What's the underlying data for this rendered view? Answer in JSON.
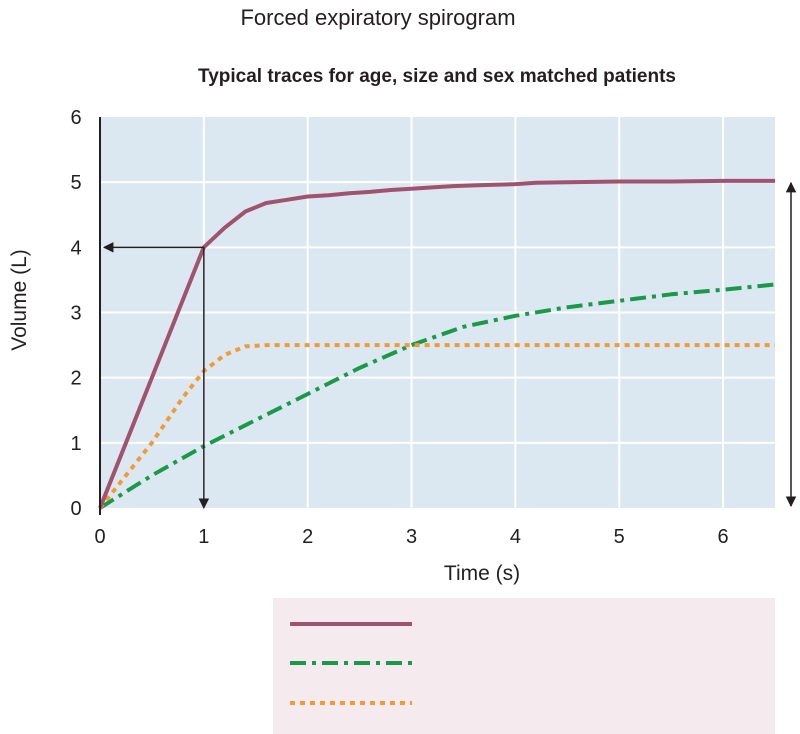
{
  "chart_data": {
    "type": "line",
    "title": "Forced expiratory spirogram",
    "subtitle": "Typical traces for age, size and sex matched patients",
    "xlabel": "Time (s)",
    "ylabel": "Volume (L)",
    "xlim": [
      0,
      6.5
    ],
    "ylim": [
      0,
      6
    ],
    "x_ticks": [
      "0",
      "1",
      "2",
      "3",
      "4",
      "5",
      "6"
    ],
    "y_ticks": [
      "0",
      "1",
      "2",
      "3",
      "4",
      "5",
      "6"
    ],
    "grid": true,
    "legend": "bottom, swatches only (no printed labels)",
    "annotations": [
      "arrow marking volume at 1 s on the solid trace (about 4.0 L)",
      "double-headed arrow at right spanning 0 to about 5.0 L"
    ],
    "series": [
      {
        "style": "solid",
        "color": "#a0526f",
        "x": [
          0,
          1.0,
          1.2,
          1.4,
          1.6,
          1.8,
          2.0,
          2.2,
          2.4,
          2.6,
          2.8,
          3.0,
          3.2,
          3.4,
          3.6,
          3.8,
          4.0,
          4.2,
          4.5,
          5.0,
          5.5,
          6.0,
          6.5
        ],
        "y": [
          0,
          4.0,
          4.3,
          4.55,
          4.68,
          4.73,
          4.78,
          4.8,
          4.83,
          4.85,
          4.88,
          4.9,
          4.92,
          4.94,
          4.95,
          4.96,
          4.97,
          4.99,
          5.0,
          5.01,
          5.01,
          5.02,
          5.02
        ]
      },
      {
        "style": "dash-dot",
        "color": "#1a9a48",
        "x": [
          0,
          0.5,
          1.0,
          1.5,
          2.0,
          2.5,
          3.0,
          3.5,
          4.0,
          4.5,
          5.0,
          5.5,
          6.0,
          6.5
        ],
        "y": [
          0,
          0.5,
          0.95,
          1.35,
          1.75,
          2.15,
          2.5,
          2.78,
          2.95,
          3.08,
          3.18,
          3.28,
          3.35,
          3.43
        ]
      },
      {
        "style": "dotted",
        "color": "#f29a36",
        "x": [
          0,
          0.5,
          0.8,
          1.0,
          1.2,
          1.4,
          1.6,
          2.0,
          3.0,
          4.0,
          5.0,
          6.0,
          6.5
        ],
        "y": [
          0,
          1.0,
          1.7,
          2.1,
          2.35,
          2.48,
          2.5,
          2.5,
          2.5,
          2.5,
          2.5,
          2.5,
          2.5
        ]
      }
    ]
  },
  "colors": {
    "plot_background": "#dbe8f2",
    "grid": "#ffffff",
    "legend_background": "#f5eaee",
    "axis": "#231f20"
  }
}
